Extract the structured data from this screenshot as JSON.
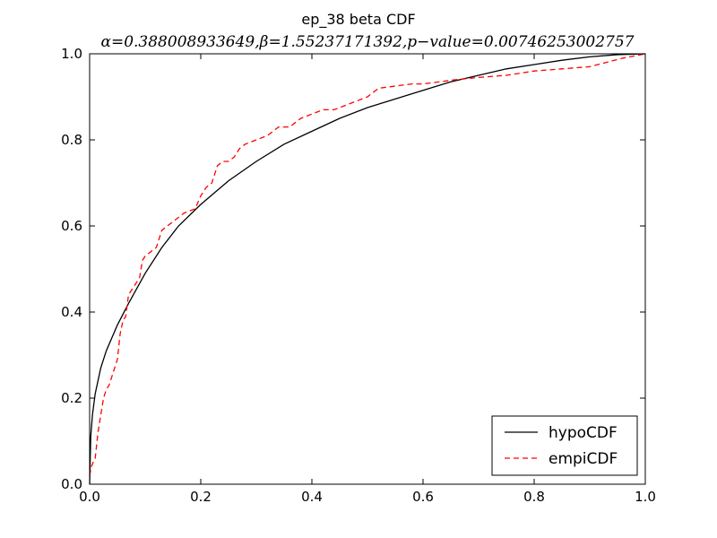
{
  "chart_data": {
    "type": "line",
    "title": "ep_38 beta CDF",
    "subtitle": "α=0.388008933649,β=1.55237171392,p−value=0.00746253002757",
    "xlabel": "",
    "ylabel": "",
    "xlim": [
      0.0,
      1.0
    ],
    "ylim": [
      0.0,
      1.0
    ],
    "x_ticks": [
      "0.0",
      "0.2",
      "0.4",
      "0.6",
      "0.8",
      "1.0"
    ],
    "y_ticks": [
      "0.0",
      "0.2",
      "0.4",
      "0.6",
      "0.8",
      "1.0"
    ],
    "grid": false,
    "legend_position": "lower right",
    "series": [
      {
        "name": "hypoCDF",
        "color": "#000000",
        "style": "solid",
        "x": [
          0.0,
          0.002,
          0.005,
          0.01,
          0.02,
          0.03,
          0.05,
          0.07,
          0.1,
          0.13,
          0.16,
          0.2,
          0.25,
          0.3,
          0.35,
          0.4,
          0.45,
          0.5,
          0.55,
          0.6,
          0.65,
          0.7,
          0.75,
          0.8,
          0.85,
          0.9,
          0.95,
          1.0
        ],
        "y": [
          0.0,
          0.11,
          0.16,
          0.21,
          0.27,
          0.31,
          0.37,
          0.42,
          0.49,
          0.55,
          0.6,
          0.65,
          0.705,
          0.75,
          0.79,
          0.82,
          0.85,
          0.875,
          0.895,
          0.915,
          0.935,
          0.95,
          0.965,
          0.975,
          0.985,
          0.993,
          0.998,
          1.0
        ]
      },
      {
        "name": "empiCDF",
        "color": "#ff0000",
        "style": "dashed",
        "x": [
          0.0,
          0.003,
          0.006,
          0.01,
          0.015,
          0.02,
          0.025,
          0.03,
          0.035,
          0.04,
          0.045,
          0.05,
          0.055,
          0.06,
          0.065,
          0.07,
          0.08,
          0.09,
          0.095,
          0.1,
          0.11,
          0.12,
          0.13,
          0.14,
          0.15,
          0.16,
          0.17,
          0.19,
          0.2,
          0.21,
          0.22,
          0.23,
          0.24,
          0.25,
          0.26,
          0.27,
          0.28,
          0.3,
          0.32,
          0.34,
          0.36,
          0.38,
          0.4,
          0.42,
          0.44,
          0.46,
          0.48,
          0.5,
          0.52,
          0.55,
          0.58,
          0.6,
          0.63,
          0.66,
          0.7,
          0.75,
          0.8,
          0.85,
          0.9,
          0.93,
          0.96,
          1.0
        ],
        "y": [
          0.02,
          0.04,
          0.05,
          0.06,
          0.12,
          0.16,
          0.2,
          0.22,
          0.23,
          0.25,
          0.27,
          0.29,
          0.35,
          0.38,
          0.39,
          0.44,
          0.46,
          0.48,
          0.52,
          0.53,
          0.54,
          0.55,
          0.59,
          0.6,
          0.61,
          0.62,
          0.63,
          0.64,
          0.67,
          0.69,
          0.7,
          0.74,
          0.75,
          0.75,
          0.76,
          0.78,
          0.79,
          0.8,
          0.81,
          0.83,
          0.83,
          0.85,
          0.86,
          0.87,
          0.87,
          0.88,
          0.89,
          0.9,
          0.92,
          0.925,
          0.93,
          0.93,
          0.935,
          0.94,
          0.945,
          0.95,
          0.96,
          0.965,
          0.97,
          0.98,
          0.99,
          1.0
        ]
      }
    ]
  }
}
